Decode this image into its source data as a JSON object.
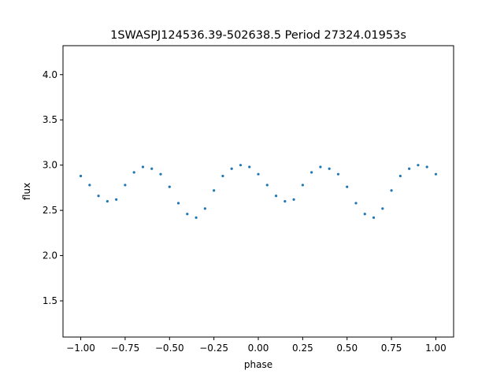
{
  "chart_data": {
    "type": "scatter",
    "title": "1SWASPJ124536.39-502638.5 Period 27324.01953s",
    "xlabel": "phase",
    "ylabel": "flux",
    "xlim": [
      -1.1,
      1.1
    ],
    "ylim": [
      1.1,
      4.32
    ],
    "xticks": [
      -1.0,
      -0.75,
      -0.5,
      -0.25,
      0.0,
      0.25,
      0.5,
      0.75,
      1.0
    ],
    "xtick_labels": [
      "−1.00",
      "−0.75",
      "−0.50",
      "−0.25",
      "0.00",
      "0.25",
      "0.50",
      "0.75",
      "1.00"
    ],
    "yticks": [
      1.5,
      2.0,
      2.5,
      3.0,
      3.5,
      4.0
    ],
    "ytick_labels": [
      "1.5",
      "2.0",
      "2.5",
      "3.0",
      "3.5",
      "4.0"
    ],
    "grid": false,
    "point_color": "#1f77b4",
    "series": [
      {
        "x": [
          -1.0,
          -0.95,
          -0.9,
          -0.85,
          -0.8,
          -0.75,
          -0.7,
          -0.65,
          -0.6,
          -0.55,
          -0.5,
          -0.45,
          -0.4,
          -0.35,
          -0.3,
          -0.25,
          -0.2,
          -0.15,
          -0.1,
          -0.05,
          0.0,
          0.05,
          0.1,
          0.15,
          0.2,
          0.25,
          0.3,
          0.35,
          0.4,
          0.45,
          0.5,
          0.55,
          0.6,
          0.65,
          0.7,
          0.75,
          0.8,
          0.85,
          0.9,
          0.95,
          1.0
        ],
        "y": [
          2.88,
          2.78,
          2.66,
          2.6,
          2.62,
          2.78,
          2.92,
          2.98,
          2.96,
          2.9,
          2.76,
          2.58,
          2.46,
          2.42,
          2.52,
          2.72,
          2.88,
          2.96,
          3.0,
          2.98,
          2.9,
          2.78,
          2.66,
          2.6,
          2.62,
          2.78,
          2.92,
          2.98,
          2.96,
          2.9,
          2.76,
          2.58,
          2.46,
          2.42,
          2.52,
          2.72,
          2.88,
          2.96,
          3.0,
          2.98,
          2.9
        ]
      }
    ]
  }
}
